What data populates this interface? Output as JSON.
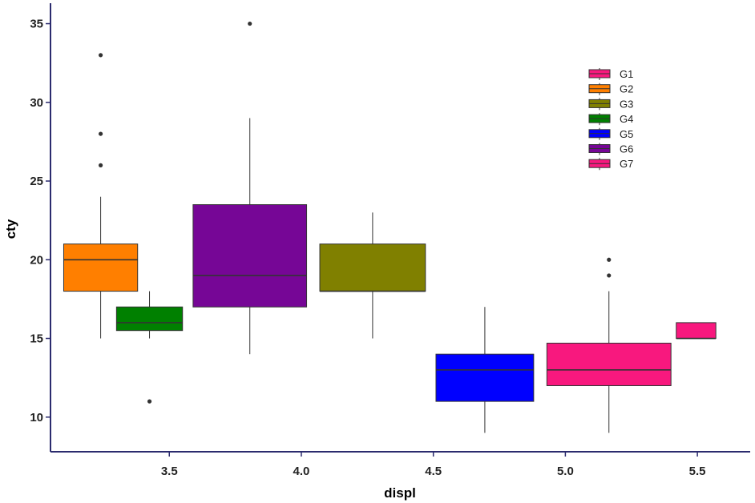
{
  "chart_data": {
    "type": "boxplot",
    "xlabel": "displ",
    "ylabel": "cty",
    "xlim": [
      3.05,
      5.7
    ],
    "ylim": [
      7.8,
      36.3
    ],
    "x_ticks": [
      3.5,
      4.0,
      4.5,
      5.0,
      5.5
    ],
    "x_tick_labels": [
      "3.5",
      "4.0",
      "4.5",
      "5.0",
      "5.5"
    ],
    "y_ticks": [
      10,
      15,
      20,
      25,
      30,
      35
    ],
    "y_tick_labels": [
      "10",
      "15",
      "20",
      "25",
      "30",
      "35"
    ],
    "grid": false,
    "legend_position": "top-right",
    "boxes": [
      {
        "name": "G2",
        "x_min": 3.1,
        "x_max": 3.38,
        "whisker_low": 15,
        "q1": 18,
        "median": 20,
        "q3": 21,
        "whisker_high": 24,
        "outliers": [
          26,
          28,
          33
        ],
        "color": "#ff7f00"
      },
      {
        "name": "G4",
        "x_min": 3.3,
        "x_max": 3.55,
        "whisker_low": 15,
        "q1": 15.5,
        "median": 16,
        "q3": 17,
        "whisker_high": 18,
        "outliers": [
          11
        ],
        "color": "#008000"
      },
      {
        "name": "G6",
        "x_min": 3.59,
        "x_max": 4.02,
        "whisker_low": 14,
        "q1": 17,
        "median": 19,
        "q3": 23.5,
        "whisker_high": 29,
        "outliers": [
          35
        ],
        "color": "#760696"
      },
      {
        "name": "G3",
        "x_min": 4.07,
        "x_max": 4.47,
        "whisker_low": 15,
        "q1": 18,
        "median": 18,
        "q3": 21,
        "whisker_high": 23,
        "outliers": [],
        "color": "#808000"
      },
      {
        "name": "G5",
        "x_min": 4.51,
        "x_max": 4.88,
        "whisker_low": 9,
        "q1": 11,
        "median": 13,
        "q3": 14,
        "whisker_high": 17,
        "outliers": [],
        "color": "#0000ff"
      },
      {
        "name": "G1",
        "x_min": 4.93,
        "x_max": 5.4,
        "whisker_low": 9,
        "q1": 12,
        "median": 13,
        "q3": 14.7,
        "whisker_high": 18,
        "outliers": [
          19,
          20
        ],
        "color": "#f8187e"
      },
      {
        "name": "G7",
        "x_min": 5.42,
        "x_max": 5.57,
        "whisker_low": 15,
        "q1": 15,
        "median": 15,
        "q3": 16,
        "whisker_high": 16,
        "outliers": [],
        "color": "#f8187e"
      }
    ],
    "legend": [
      {
        "label": "G1",
        "color": "#f8187e"
      },
      {
        "label": "G2",
        "color": "#ff7f00"
      },
      {
        "label": "G3",
        "color": "#808000"
      },
      {
        "label": "G4",
        "color": "#008000"
      },
      {
        "label": "G5",
        "color": "#0000ff"
      },
      {
        "label": "G6",
        "color": "#760696"
      },
      {
        "label": "G7",
        "color": "#f8187e"
      }
    ],
    "axis_color": "#2b2b6e"
  }
}
